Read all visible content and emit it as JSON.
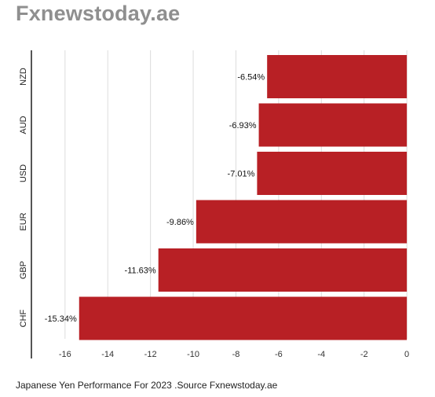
{
  "brand": {
    "name": "Fxnewstoday.ae"
  },
  "caption": "Japanese Yen Performance For 2023 .Source Fxnewstoday.ae",
  "chart_data": {
    "type": "bar",
    "orientation": "horizontal",
    "title": "",
    "xlabel": "",
    "ylabel": "",
    "categories": [
      "NZD",
      "AUD",
      "USD",
      "EUR",
      "GBP",
      "CHF"
    ],
    "values": [
      -6.54,
      -6.93,
      -7.01,
      -9.86,
      -11.63,
      -15.34
    ],
    "value_labels": [
      "-6.54%",
      "-6.93%",
      "-7.01%",
      "-9.86%",
      "-11.63%",
      "-15.34%"
    ],
    "xlim": [
      -17.5,
      0.4
    ],
    "x_ticks": [
      -16,
      -14,
      -12,
      -10,
      -8,
      -6,
      -4,
      -2,
      0
    ],
    "grid": "vertical",
    "bar_color": "#b82025"
  }
}
